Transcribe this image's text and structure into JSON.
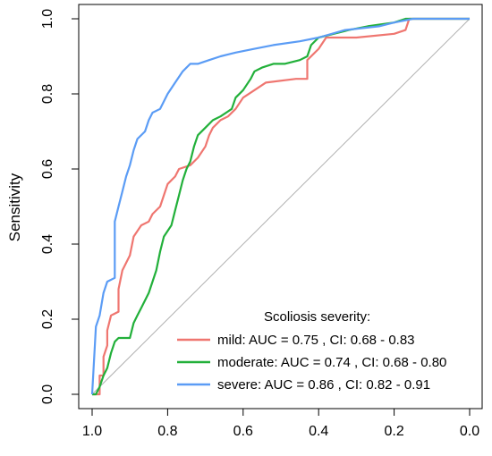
{
  "chart_data": {
    "type": "line",
    "title": "",
    "xlabel": "",
    "ylabel": "Sensitivity",
    "x_axis": "specificity, reversed",
    "xlim": [
      1.0,
      0.0
    ],
    "ylim": [
      0.0,
      1.0
    ],
    "x_ticks": [
      "1.0",
      "0.8",
      "0.6",
      "0.4",
      "0.2",
      "0.0"
    ],
    "y_ticks": [
      "0.0",
      "0.2",
      "0.4",
      "0.6",
      "0.8",
      "1.0"
    ],
    "x_tick_values": [
      1.0,
      0.8,
      0.6,
      0.4,
      0.2,
      0.0
    ],
    "y_tick_values": [
      0.0,
      0.2,
      0.4,
      0.6,
      0.8,
      1.0
    ],
    "grid": false,
    "reference_line": {
      "from": [
        1.0,
        0.0
      ],
      "to": [
        0.0,
        1.0
      ],
      "color": "#b0b0b0"
    },
    "legend": {
      "title": "Scoliosis severity:",
      "placement": "bottom-right"
    },
    "series": [
      {
        "name": "mild: AUC = 0.75 , CI: 0.68 - 0.83",
        "color": "#ef7670",
        "points": [
          [
            1.0,
            0.0
          ],
          [
            0.98,
            0.0
          ],
          [
            0.98,
            0.05
          ],
          [
            0.97,
            0.05
          ],
          [
            0.97,
            0.1
          ],
          [
            0.96,
            0.13
          ],
          [
            0.96,
            0.17
          ],
          [
            0.95,
            0.21
          ],
          [
            0.93,
            0.22
          ],
          [
            0.93,
            0.28
          ],
          [
            0.92,
            0.33
          ],
          [
            0.9,
            0.37
          ],
          [
            0.89,
            0.42
          ],
          [
            0.87,
            0.45
          ],
          [
            0.85,
            0.46
          ],
          [
            0.84,
            0.48
          ],
          [
            0.82,
            0.5
          ],
          [
            0.81,
            0.53
          ],
          [
            0.8,
            0.56
          ],
          [
            0.78,
            0.58
          ],
          [
            0.77,
            0.6
          ],
          [
            0.74,
            0.61
          ],
          [
            0.72,
            0.63
          ],
          [
            0.7,
            0.66
          ],
          [
            0.69,
            0.69
          ],
          [
            0.68,
            0.71
          ],
          [
            0.66,
            0.73
          ],
          [
            0.64,
            0.74
          ],
          [
            0.62,
            0.76
          ],
          [
            0.6,
            0.79
          ],
          [
            0.57,
            0.81
          ],
          [
            0.54,
            0.83
          ],
          [
            0.46,
            0.84
          ],
          [
            0.43,
            0.84
          ],
          [
            0.43,
            0.89
          ],
          [
            0.4,
            0.92
          ],
          [
            0.38,
            0.95
          ],
          [
            0.3,
            0.95
          ],
          [
            0.2,
            0.96
          ],
          [
            0.17,
            0.97
          ],
          [
            0.16,
            1.0
          ],
          [
            0.0,
            1.0
          ]
        ]
      },
      {
        "name": "moderate: AUC = 0.74 , CI: 0.68 - 0.80",
        "color": "#22b03a",
        "points": [
          [
            1.0,
            0.0
          ],
          [
            0.99,
            0.0
          ],
          [
            0.98,
            0.02
          ],
          [
            0.97,
            0.05
          ],
          [
            0.96,
            0.07
          ],
          [
            0.95,
            0.11
          ],
          [
            0.94,
            0.14
          ],
          [
            0.93,
            0.15
          ],
          [
            0.9,
            0.15
          ],
          [
            0.89,
            0.19
          ],
          [
            0.88,
            0.21
          ],
          [
            0.87,
            0.23
          ],
          [
            0.85,
            0.27
          ],
          [
            0.84,
            0.3
          ],
          [
            0.83,
            0.33
          ],
          [
            0.82,
            0.38
          ],
          [
            0.81,
            0.42
          ],
          [
            0.79,
            0.45
          ],
          [
            0.78,
            0.49
          ],
          [
            0.77,
            0.53
          ],
          [
            0.76,
            0.57
          ],
          [
            0.75,
            0.6
          ],
          [
            0.74,
            0.62
          ],
          [
            0.73,
            0.66
          ],
          [
            0.72,
            0.69
          ],
          [
            0.7,
            0.71
          ],
          [
            0.68,
            0.73
          ],
          [
            0.66,
            0.74
          ],
          [
            0.63,
            0.76
          ],
          [
            0.62,
            0.79
          ],
          [
            0.6,
            0.81
          ],
          [
            0.58,
            0.84
          ],
          [
            0.57,
            0.86
          ],
          [
            0.55,
            0.87
          ],
          [
            0.52,
            0.88
          ],
          [
            0.49,
            0.88
          ],
          [
            0.45,
            0.89
          ],
          [
            0.43,
            0.9
          ],
          [
            0.42,
            0.93
          ],
          [
            0.4,
            0.95
          ],
          [
            0.36,
            0.96
          ],
          [
            0.32,
            0.97
          ],
          [
            0.27,
            0.98
          ],
          [
            0.2,
            0.99
          ],
          [
            0.17,
            1.0
          ],
          [
            0.0,
            1.0
          ]
        ]
      },
      {
        "name": "severe: AUC = 0.86 , CI: 0.82 - 0.91",
        "color": "#5b9cf5",
        "points": [
          [
            1.0,
            0.0
          ],
          [
            0.99,
            0.18
          ],
          [
            0.98,
            0.21
          ],
          [
            0.97,
            0.27
          ],
          [
            0.96,
            0.3
          ],
          [
            0.94,
            0.31
          ],
          [
            0.94,
            0.46
          ],
          [
            0.93,
            0.5
          ],
          [
            0.92,
            0.54
          ],
          [
            0.91,
            0.58
          ],
          [
            0.9,
            0.61
          ],
          [
            0.89,
            0.65
          ],
          [
            0.88,
            0.68
          ],
          [
            0.86,
            0.7
          ],
          [
            0.85,
            0.73
          ],
          [
            0.84,
            0.75
          ],
          [
            0.82,
            0.76
          ],
          [
            0.8,
            0.8
          ],
          [
            0.78,
            0.83
          ],
          [
            0.76,
            0.86
          ],
          [
            0.74,
            0.88
          ],
          [
            0.72,
            0.88
          ],
          [
            0.69,
            0.89
          ],
          [
            0.66,
            0.9
          ],
          [
            0.62,
            0.91
          ],
          [
            0.57,
            0.92
          ],
          [
            0.52,
            0.93
          ],
          [
            0.45,
            0.94
          ],
          [
            0.4,
            0.95
          ],
          [
            0.33,
            0.97
          ],
          [
            0.24,
            0.98
          ],
          [
            0.2,
            0.99
          ],
          [
            0.15,
            1.0
          ],
          [
            0.0,
            1.0
          ]
        ]
      }
    ]
  }
}
